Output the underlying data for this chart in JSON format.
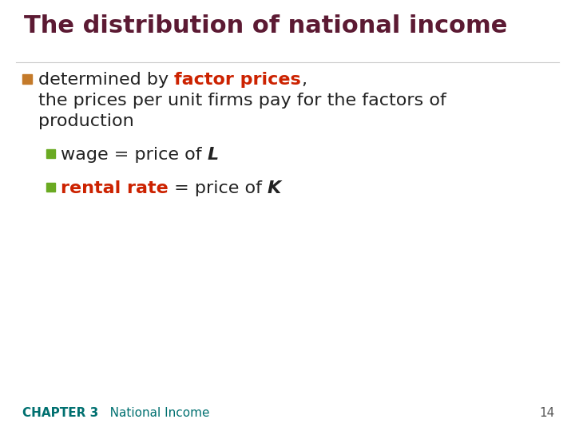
{
  "title": "The distribution of national income",
  "title_color": "#5c1a33",
  "title_fontsize": 22,
  "background_color": "#ffffff",
  "bullet1_square_color": "#c47a2a",
  "bullet1_text_normal": "determined by ",
  "bullet1_text_highlight": "factor prices",
  "bullet1_text_highlight_color": "#cc2200",
  "bullet1_text_after": ",",
  "bullet1_line2": "the prices per unit firms pay for the factors of",
  "bullet1_line3": "production",
  "bullet1_fontsize": 16,
  "bullet2_square_color": "#6aaa22",
  "bullet2_text_normal1": "wage = price of ",
  "bullet2_text_italic": "L",
  "bullet2_fontsize": 16,
  "bullet3_square_color": "#6aaa22",
  "bullet3_text_highlight": "rental rate",
  "bullet3_text_highlight_color": "#cc2200",
  "bullet3_text_normal": " = price of ",
  "bullet3_text_italic": "K",
  "bullet3_fontsize": 16,
  "footer_chapter": "CHAPTER 3",
  "footer_title": "   National Income",
  "footer_page": "14",
  "footer_color": "#007070",
  "footer_fontsize": 11
}
